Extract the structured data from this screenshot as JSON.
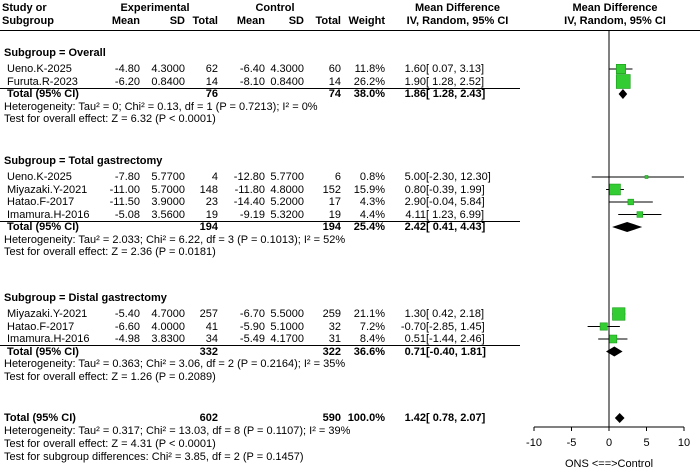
{
  "header": {
    "study_line1": "Study or",
    "study_line2": "Subgroup",
    "experimental": "Experimental",
    "control": "Control",
    "mean": "Mean",
    "sd": "SD",
    "total": "Total",
    "weight": "Weight",
    "md_line1": "Mean Difference",
    "md_line2": "IV, Random, 95% CI",
    "plot_line1": "Mean Difference",
    "plot_line2": "IV, Random, 95% CI"
  },
  "chart_data": {
    "type": "forest",
    "x_axis": {
      "xlim": [
        -10,
        10
      ],
      "ticks": [
        "-10",
        "-5",
        "0",
        "5",
        "10"
      ],
      "xlabel": "ONS <==>Control"
    },
    "subgroups": [
      {
        "title": "Subgroup = Overall",
        "studies": [
          {
            "study": "Ueno.K-2025",
            "e_mean": "-4.80",
            "e_sd": "4.3000",
            "e_total": "62",
            "c_mean": "-6.40",
            "c_sd": "4.3000",
            "c_total": "60",
            "weight": "11.8%",
            "ci_text": "1.60 [ 0.07,  3.13]",
            "md": 1.6,
            "lo": 0.07,
            "hi": 3.13,
            "w": 11.8
          },
          {
            "study": "Furuta.R-2023",
            "e_mean": "-6.20",
            "e_sd": "0.8400",
            "e_total": "14",
            "c_mean": "-8.10",
            "c_sd": "0.8400",
            "c_total": "14",
            "weight": "26.2%",
            "ci_text": "1.90 [ 1.28,  2.52]",
            "md": 1.9,
            "lo": 1.28,
            "hi": 2.52,
            "w": 26.2
          }
        ],
        "total": {
          "label": "Total (95% CI)",
          "e_total": "76",
          "c_total": "74",
          "weight": "38.0%",
          "ci_text": "1.86 [ 1.28,  2.43]",
          "md": 1.86,
          "lo": 1.28,
          "hi": 2.43
        },
        "heterogeneity": "Heterogeneity: Tau² = 0; Chi² = 0.13, df = 1 (P = 0.7213); I² = 0%",
        "overall_effect": "Test for overall effect: Z = 6.32 (P < 0.0001)"
      },
      {
        "title": "Subgroup = Total gastrectomy",
        "studies": [
          {
            "study": "Ueno.K-2025",
            "e_mean": "-7.80",
            "e_sd": "5.7700",
            "e_total": "4",
            "c_mean": "-12.80",
            "c_sd": "5.7700",
            "c_total": "6",
            "weight": "0.8%",
            "ci_text": "5.00 [-2.30, 12.30]",
            "md": 5.0,
            "lo": -2.3,
            "hi": 12.3,
            "w": 0.8
          },
          {
            "study": "Miyazaki.Y-2021",
            "e_mean": "-11.00",
            "e_sd": "5.7000",
            "e_total": "148",
            "c_mean": "-11.80",
            "c_sd": "4.8000",
            "c_total": "152",
            "weight": "15.9%",
            "ci_text": "0.80 [-0.39,  1.99]",
            "md": 0.8,
            "lo": -0.39,
            "hi": 1.99,
            "w": 15.9
          },
          {
            "study": "Hatao.F-2017",
            "e_mean": "-11.50",
            "e_sd": "3.9000",
            "e_total": "23",
            "c_mean": "-14.40",
            "c_sd": "5.2000",
            "c_total": "17",
            "weight": "4.3%",
            "ci_text": "2.90 [-0.04,  5.84]",
            "md": 2.9,
            "lo": -0.04,
            "hi": 5.84,
            "w": 4.3
          },
          {
            "study": "Imamura.H-2016",
            "e_mean": "-5.08",
            "e_sd": "3.5600",
            "e_total": "19",
            "c_mean": "-9.19",
            "c_sd": "5.3200",
            "c_total": "19",
            "weight": "4.4%",
            "ci_text": "4.11 [ 1.23,  6.99]",
            "md": 4.11,
            "lo": 1.23,
            "hi": 6.99,
            "w": 4.4
          }
        ],
        "total": {
          "label": "Total (95% CI)",
          "e_total": "194",
          "c_total": "194",
          "weight": "25.4%",
          "ci_text": "2.42 [ 0.41,  4.43]",
          "md": 2.42,
          "lo": 0.41,
          "hi": 4.43
        },
        "heterogeneity": "Heterogeneity: Tau² = 2.033; Chi² = 6.22, df = 3 (P = 0.1013); I² = 52%",
        "overall_effect": "Test for overall effect: Z = 2.36 (P = 0.0181)"
      },
      {
        "title": "Subgroup = Distal gastrectomy",
        "studies": [
          {
            "study": "Miyazaki.Y-2021",
            "e_mean": "-5.40",
            "e_sd": "4.7000",
            "e_total": "257",
            "c_mean": "-6.70",
            "c_sd": "5.5000",
            "c_total": "259",
            "weight": "21.1%",
            "ci_text": "1.30 [ 0.42,  2.18]",
            "md": 1.3,
            "lo": 0.42,
            "hi": 2.18,
            "w": 21.1
          },
          {
            "study": "Hatao.F-2017",
            "e_mean": "-6.60",
            "e_sd": "4.0000",
            "e_total": "41",
            "c_mean": "-5.90",
            "c_sd": "5.1000",
            "c_total": "32",
            "weight": "7.2%",
            "ci_text": "-0.70 [-2.85,  1.45]",
            "md": -0.7,
            "lo": -2.85,
            "hi": 1.45,
            "w": 7.2
          },
          {
            "study": "Imamura.H-2016",
            "e_mean": "-4.98",
            "e_sd": "3.8300",
            "e_total": "34",
            "c_mean": "-5.49",
            "c_sd": "4.1700",
            "c_total": "31",
            "weight": "8.4%",
            "ci_text": "0.51 [-1.44,  2.46]",
            "md": 0.51,
            "lo": -1.44,
            "hi": 2.46,
            "w": 8.4
          }
        ],
        "total": {
          "label": "Total (95% CI)",
          "e_total": "332",
          "c_total": "322",
          "weight": "36.6%",
          "ci_text": "0.71 [-0.40,  1.81]",
          "md": 0.71,
          "lo": -0.4,
          "hi": 1.81
        },
        "heterogeneity": "Heterogeneity: Tau² = 0.363; Chi² = 3.06, df = 2 (P = 0.2164); I² = 35%",
        "overall_effect": "Test for overall effect: Z = 1.26 (P = 0.2089)"
      }
    ],
    "overall": {
      "label": "Total (95% CI)",
      "e_total": "602",
      "c_total": "590",
      "weight": "100.0%",
      "ci_text": "1.42 [ 0.78,  2.07]",
      "md": 1.42,
      "lo": 0.78,
      "hi": 2.07,
      "heterogeneity": "Heterogeneity: Tau² = 0.317; Chi² = 13.03, df = 8 (P = 0.1107); I² = 39%",
      "overall_effect": "Test for overall effect: Z = 4.31 (P < 0.0001)",
      "subgroup_diff": "Test for subgroup differences: Chi² = 3.85, df = 2 (P = 0.1457)"
    },
    "colors": {
      "square": "#33cc33",
      "square_border": "#1a9a1a",
      "diamond": "#000000",
      "line": "#000000"
    }
  }
}
